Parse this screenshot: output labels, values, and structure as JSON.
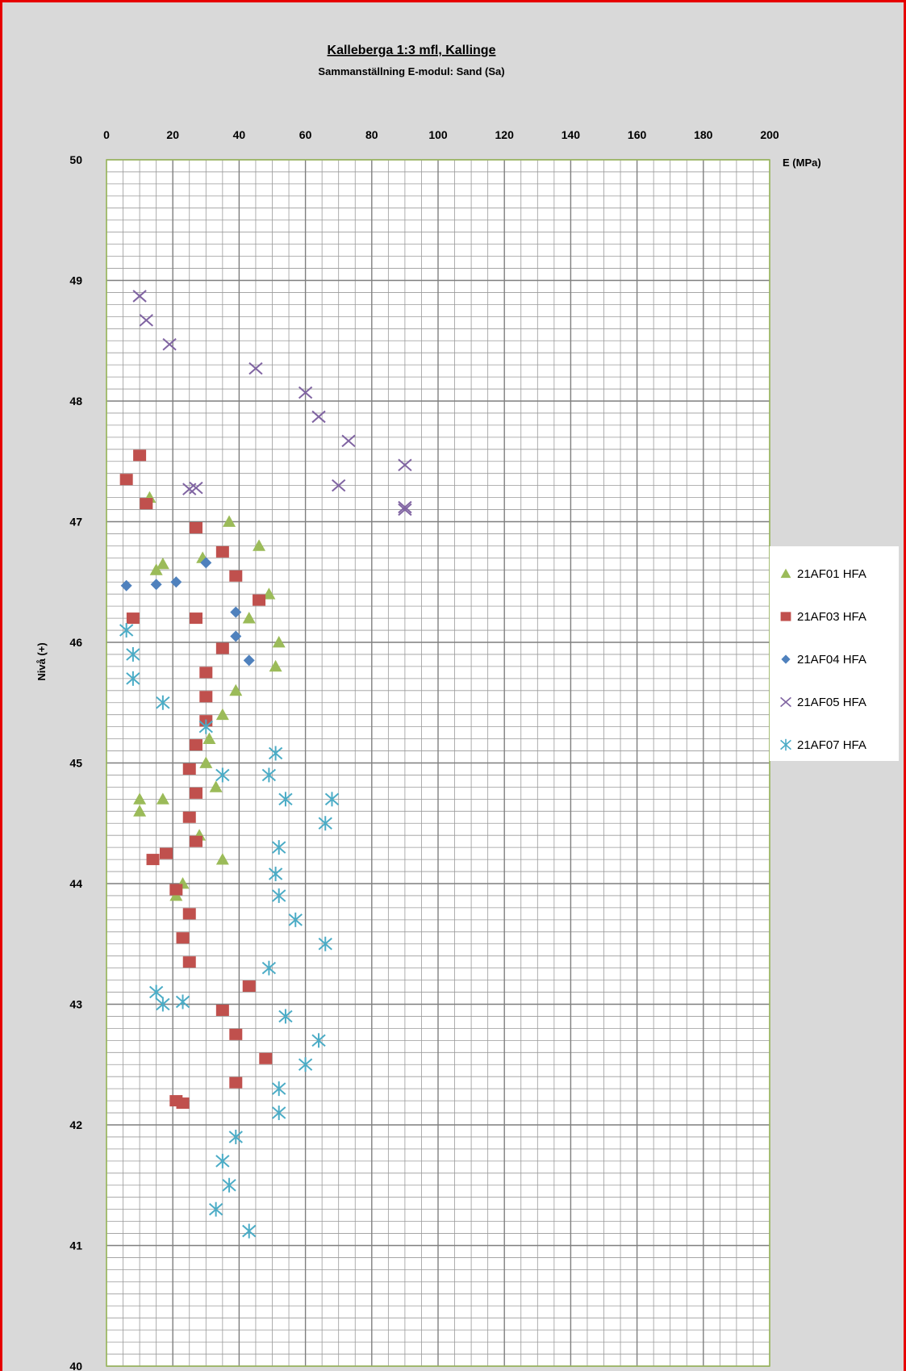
{
  "chart_data": {
    "type": "scatter",
    "title": "Kalleberga 1:3 mfl, Kallinge",
    "subtitle": "Sammanställning E-modul: Sand (Sa)",
    "xlabel": "E (MPa)",
    "ylabel": "Nivå (+)",
    "xlim": [
      0,
      200
    ],
    "ylim": [
      40,
      50
    ],
    "x_ticks": [
      0,
      20,
      40,
      60,
      80,
      100,
      120,
      140,
      160,
      180,
      200
    ],
    "y_ticks": [
      40,
      41,
      42,
      43,
      44,
      45,
      46,
      47,
      48,
      49,
      50
    ],
    "x_axis_position": "top",
    "grid": true,
    "legend_position": "right",
    "series": [
      {
        "name": "21AF01 HFA",
        "marker": "triangle",
        "color": "#9bbb59",
        "points": [
          [
            13,
            47.2
          ],
          [
            17,
            46.65
          ],
          [
            15,
            46.6
          ],
          [
            29,
            46.7
          ],
          [
            37,
            47.0
          ],
          [
            46,
            46.8
          ],
          [
            49,
            46.4
          ],
          [
            43,
            46.2
          ],
          [
            52,
            46.0
          ],
          [
            51,
            45.8
          ],
          [
            39,
            45.6
          ],
          [
            35,
            45.4
          ],
          [
            31,
            45.2
          ],
          [
            30,
            45.0
          ],
          [
            33,
            44.8
          ],
          [
            10,
            44.7
          ],
          [
            10,
            44.6
          ],
          [
            17,
            44.7
          ],
          [
            28,
            44.4
          ],
          [
            35,
            44.2
          ],
          [
            23,
            44.0
          ],
          [
            21,
            43.9
          ]
        ]
      },
      {
        "name": "21AF03 HFA",
        "marker": "square",
        "color": "#c0504d",
        "points": [
          [
            10,
            47.55
          ],
          [
            6,
            47.35
          ],
          [
            12,
            47.15
          ],
          [
            27,
            46.95
          ],
          [
            35,
            46.75
          ],
          [
            39,
            46.55
          ],
          [
            46,
            46.35
          ],
          [
            8,
            46.2
          ],
          [
            27,
            46.2
          ],
          [
            35,
            45.95
          ],
          [
            30,
            45.75
          ],
          [
            30,
            45.55
          ],
          [
            30,
            45.35
          ],
          [
            27,
            45.15
          ],
          [
            25,
            44.95
          ],
          [
            27,
            44.75
          ],
          [
            25,
            44.55
          ],
          [
            27,
            44.35
          ],
          [
            18,
            44.25
          ],
          [
            14,
            44.2
          ],
          [
            21,
            43.95
          ],
          [
            25,
            43.75
          ],
          [
            23,
            43.55
          ],
          [
            25,
            43.35
          ],
          [
            43,
            43.15
          ],
          [
            35,
            42.95
          ],
          [
            39,
            42.75
          ],
          [
            48,
            42.55
          ],
          [
            39,
            42.35
          ],
          [
            21,
            42.2
          ],
          [
            23,
            42.18
          ]
        ]
      },
      {
        "name": "21AF04 HFA",
        "marker": "diamond",
        "color": "#4f81bd",
        "points": [
          [
            6,
            46.47
          ],
          [
            15,
            46.48
          ],
          [
            21,
            46.5
          ],
          [
            30,
            46.66
          ],
          [
            39,
            46.25
          ],
          [
            39,
            46.05
          ],
          [
            43,
            45.85
          ]
        ]
      },
      {
        "name": "21AF05 HFA",
        "marker": "x",
        "color": "#8064a2",
        "points": [
          [
            10,
            48.87
          ],
          [
            12,
            48.67
          ],
          [
            19,
            48.47
          ],
          [
            45,
            48.27
          ],
          [
            60,
            48.07
          ],
          [
            64,
            47.87
          ],
          [
            73,
            47.67
          ],
          [
            90,
            47.47
          ],
          [
            70,
            47.3
          ],
          [
            25,
            47.27
          ],
          [
            27,
            47.28
          ],
          [
            90,
            47.12
          ],
          [
            90,
            47.1
          ]
        ]
      },
      {
        "name": "21AF07 HFA",
        "marker": "asterisk",
        "color": "#4bacc6",
        "points": [
          [
            6,
            46.1
          ],
          [
            8,
            45.9
          ],
          [
            8,
            45.7
          ],
          [
            17,
            45.5
          ],
          [
            30,
            45.3
          ],
          [
            51,
            45.08
          ],
          [
            35,
            44.9
          ],
          [
            49,
            44.9
          ],
          [
            54,
            44.7
          ],
          [
            68,
            44.7
          ],
          [
            66,
            44.5
          ],
          [
            52,
            44.3
          ],
          [
            51,
            44.08
          ],
          [
            52,
            43.9
          ],
          [
            57,
            43.7
          ],
          [
            66,
            43.5
          ],
          [
            49,
            43.3
          ],
          [
            15,
            43.1
          ],
          [
            17,
            43.0
          ],
          [
            23,
            43.02
          ],
          [
            54,
            42.9
          ],
          [
            64,
            42.7
          ],
          [
            60,
            42.5
          ],
          [
            52,
            42.3
          ],
          [
            52,
            42.1
          ],
          [
            39,
            41.9
          ],
          [
            35,
            41.7
          ],
          [
            37,
            41.5
          ],
          [
            33,
            41.3
          ],
          [
            43,
            41.12
          ]
        ]
      }
    ]
  }
}
